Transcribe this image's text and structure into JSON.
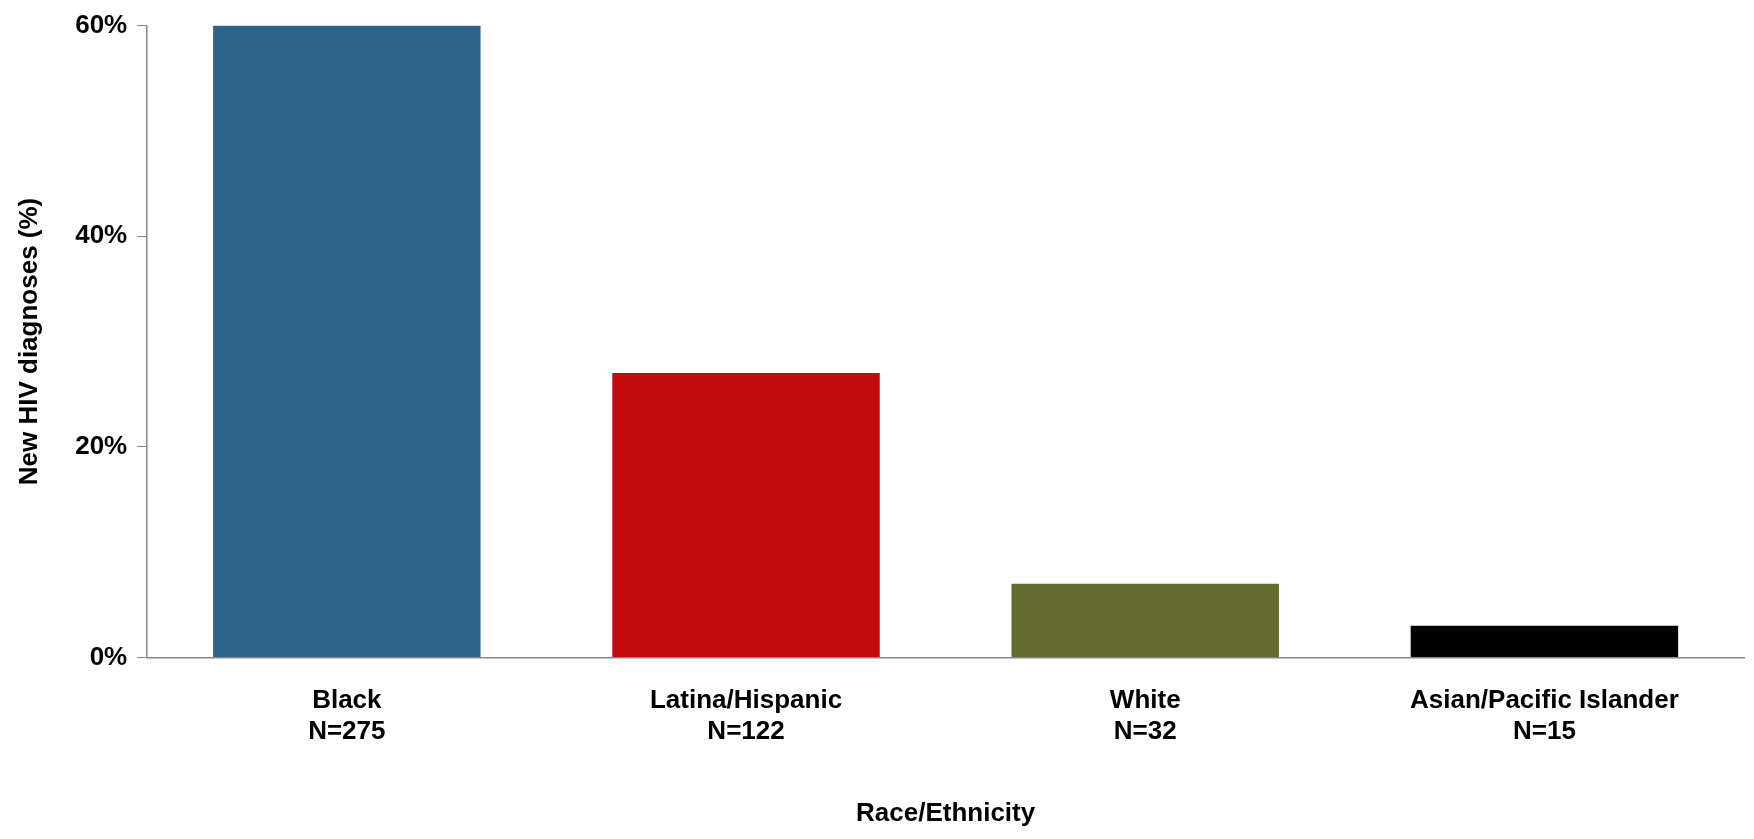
{
  "chart_data": {
    "type": "bar",
    "xlabel": "Race/Ethnicity",
    "ylabel": "New HIV diagnoses (%)",
    "categories": [
      "Black\nN=275",
      "Latina/Hispanic\nN=122",
      "White\nN=32",
      "Asian/Pacific Islander\nN=15"
    ],
    "values": [
      60,
      27,
      7,
      3
    ],
    "colors": [
      "#2e648c",
      "#c20c0e",
      "#636b2f",
      "#000000"
    ],
    "ylim": [
      0,
      60
    ],
    "yticks": [
      {
        "value": 0,
        "label": "0%"
      },
      {
        "value": 20,
        "label": "20%"
      },
      {
        "value": 40,
        "label": "40%"
      },
      {
        "value": 60,
        "label": "60%"
      }
    ],
    "grid": false,
    "legend": false
  }
}
